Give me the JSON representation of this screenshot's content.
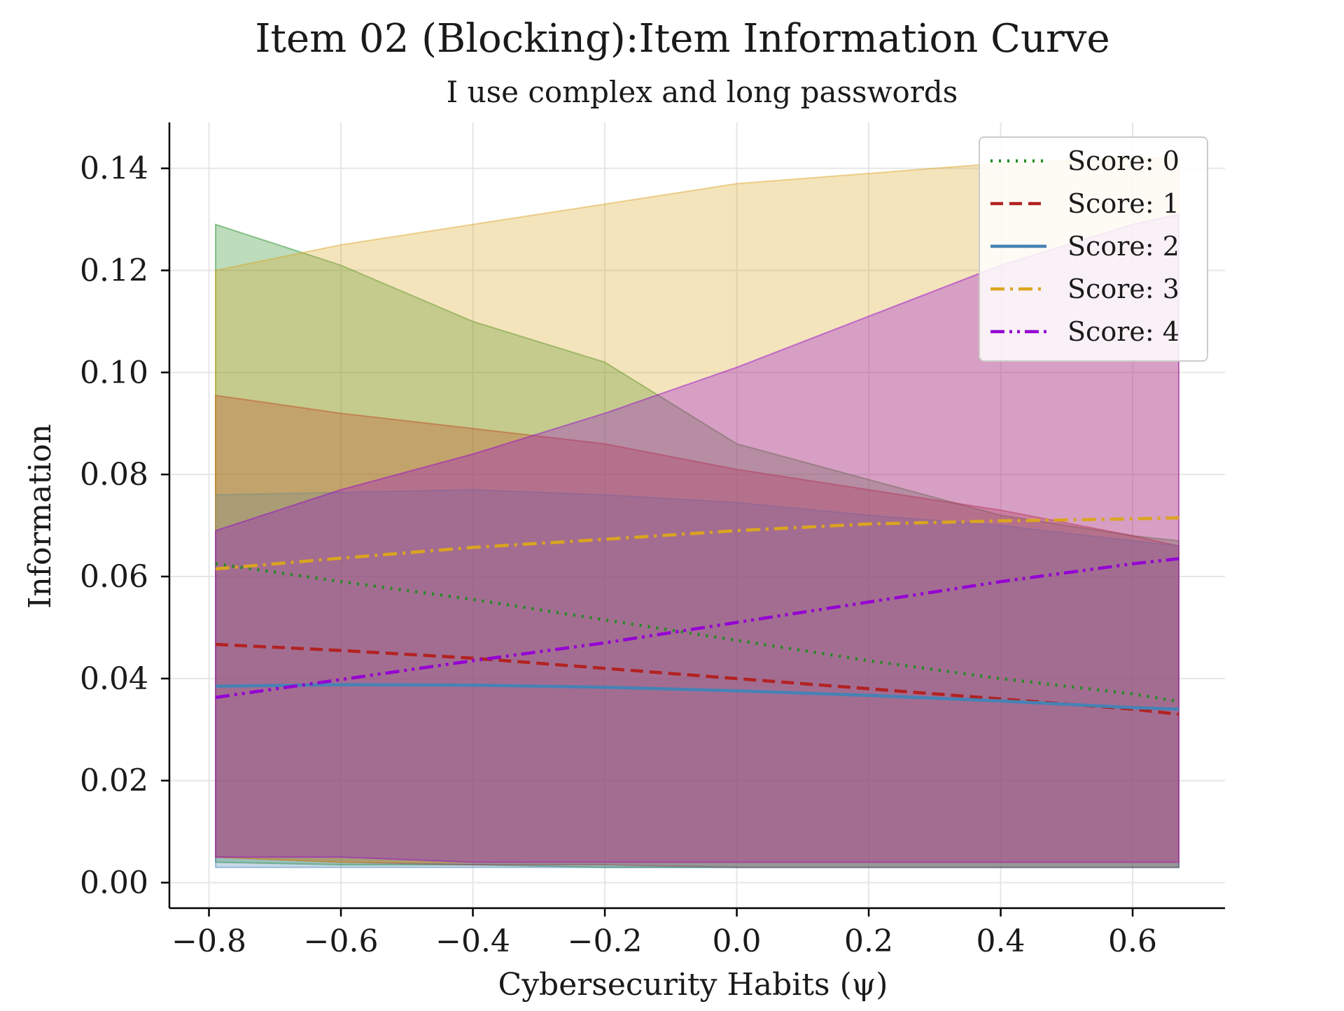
{
  "chart_data": {
    "type": "line",
    "title": "Item 02 (Blocking):Item Information Curve",
    "subtitle": "I use complex and long passwords",
    "xlabel": "Cybersecurity Habits (ψ)",
    "ylabel": "Information",
    "xlim": [
      -0.86,
      0.74
    ],
    "ylim": [
      -0.005,
      0.149
    ],
    "grid": true,
    "legend_position": "top-right",
    "x_ticks": [
      -0.8,
      -0.6,
      -0.4,
      -0.2,
      0.0,
      0.2,
      0.4,
      0.6
    ],
    "x_tick_labels": [
      "−0.8",
      "−0.6",
      "−0.4",
      "−0.2",
      "0.0",
      "0.2",
      "0.4",
      "0.6"
    ],
    "y_ticks": [
      0.0,
      0.02,
      0.04,
      0.06,
      0.08,
      0.1,
      0.12,
      0.14
    ],
    "y_tick_labels": [
      "0.00",
      "0.02",
      "0.04",
      "0.06",
      "0.08",
      "0.10",
      "0.12",
      "0.14"
    ],
    "x": [
      -0.79,
      -0.6,
      -0.4,
      -0.2,
      0.0,
      0.2,
      0.4,
      0.6,
      0.67
    ],
    "series": [
      {
        "name": "Score: 0",
        "color": "#228b22",
        "dash": "dotted",
        "values": [
          0.0625,
          0.059,
          0.0555,
          0.0515,
          0.0475,
          0.0435,
          0.04,
          0.037,
          0.0355
        ],
        "band_upper": [
          0.129,
          0.121,
          0.11,
          0.102,
          0.086,
          0.079,
          0.072,
          0.068,
          0.067
        ],
        "band_lower": [
          0.004,
          0.0035,
          0.0035,
          0.003,
          0.003,
          0.003,
          0.003,
          0.003,
          0.003
        ]
      },
      {
        "name": "Score: 1",
        "color": "#b22222",
        "dash": "dashed",
        "values": [
          0.0467,
          0.0455,
          0.044,
          0.042,
          0.04,
          0.038,
          0.036,
          0.034,
          0.033
        ],
        "band_upper": [
          0.0955,
          0.092,
          0.089,
          0.086,
          0.081,
          0.077,
          0.073,
          0.068,
          0.066
        ],
        "band_lower": [
          0.005,
          0.004,
          0.0035,
          0.0035,
          0.003,
          0.003,
          0.003,
          0.003,
          0.003
        ]
      },
      {
        "name": "Score: 2",
        "color": "#4682b4",
        "dash": "solid",
        "values": [
          0.0385,
          0.0388,
          0.0387,
          0.0383,
          0.0376,
          0.0367,
          0.0356,
          0.0343,
          0.034
        ],
        "band_upper": [
          0.076,
          0.0765,
          0.077,
          0.076,
          0.0745,
          0.072,
          0.07,
          0.067,
          0.066
        ],
        "band_lower": [
          0.003,
          0.003,
          0.003,
          0.003,
          0.003,
          0.003,
          0.003,
          0.003,
          0.003
        ]
      },
      {
        "name": "Score: 3",
        "color": "#daa520",
        "dash": "dashdot",
        "values": [
          0.0615,
          0.0636,
          0.0657,
          0.0673,
          0.069,
          0.0703,
          0.0709,
          0.0713,
          0.0715
        ],
        "band_upper": [
          0.12,
          0.125,
          0.129,
          0.133,
          0.137,
          0.139,
          0.141,
          0.142,
          0.142
        ],
        "band_lower": [
          0.005,
          0.004,
          0.004,
          0.004,
          0.004,
          0.004,
          0.004,
          0.004,
          0.004
        ]
      },
      {
        "name": "Score: 4",
        "color": "#9400d3",
        "dash": "dashdotdot",
        "values": [
          0.0363,
          0.0398,
          0.0435,
          0.047,
          0.051,
          0.055,
          0.059,
          0.0625,
          0.0635
        ],
        "band_upper": [
          0.069,
          0.077,
          0.084,
          0.092,
          0.101,
          0.111,
          0.121,
          0.129,
          0.131
        ],
        "band_lower": [
          0.005,
          0.005,
          0.004,
          0.004,
          0.004,
          0.004,
          0.004,
          0.004,
          0.004
        ]
      }
    ]
  }
}
